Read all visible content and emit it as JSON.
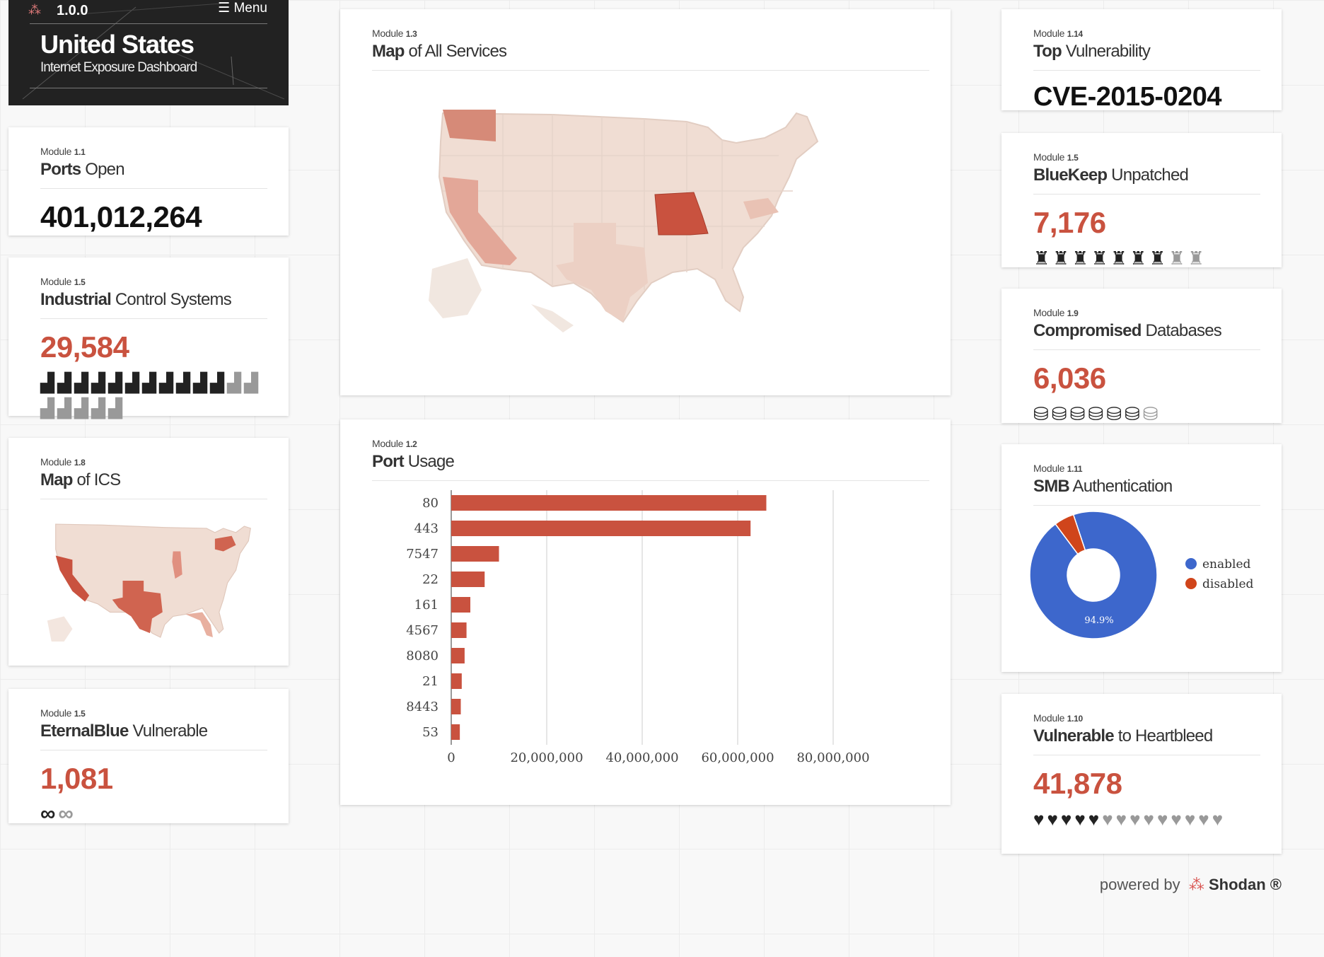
{
  "header": {
    "version": "1.0.0",
    "menu_label": "Menu",
    "country": "United States",
    "subtitle": "Internet Exposure Dashboard"
  },
  "modules": {
    "ports_open": {
      "module_prefix": "Module",
      "module_num": "1.1",
      "title_bold": "Ports",
      "title_rest": "Open",
      "value": "401,012,264"
    },
    "ics": {
      "module_prefix": "Module",
      "module_num": "1.5",
      "title_bold": "Industrial",
      "title_rest": "Control Systems",
      "value": "29,584",
      "icons_filled": 11,
      "icons_total": 18
    },
    "map_ics": {
      "module_prefix": "Module",
      "module_num": "1.8",
      "title_bold": "Map",
      "title_rest": "of ICS"
    },
    "eternalblue": {
      "module_prefix": "Module",
      "module_num": "1.5",
      "title_bold": "EternalBlue",
      "title_rest": "Vulnerable",
      "value": "1,081",
      "icons_filled": 1,
      "icons_total": 2
    },
    "map_all": {
      "module_prefix": "Module",
      "module_num": "1.3",
      "title_bold": "Map",
      "title_rest": "of All Services"
    },
    "port_usage": {
      "module_prefix": "Module",
      "module_num": "1.2",
      "title_bold": "Port",
      "title_rest": "Usage"
    },
    "top_vuln": {
      "module_prefix": "Module",
      "module_num": "1.14",
      "title_bold": "Top",
      "title_rest": "Vulnerability",
      "value": "CVE-2015-0204"
    },
    "bluekeep": {
      "module_prefix": "Module",
      "module_num": "1.5",
      "title_bold": "BlueKeep",
      "title_rest": "Unpatched",
      "value": "7,176",
      "icons_filled": 7,
      "icons_total": 9
    },
    "databases": {
      "module_prefix": "Module",
      "module_num": "1.9",
      "title_bold": "Compromised",
      "title_rest": "Databases",
      "value": "6,036",
      "icons_filled": 6,
      "icons_total": 7
    },
    "smb": {
      "module_prefix": "Module",
      "module_num": "1.11",
      "title_bold": "SMB",
      "title_rest": "Authentication"
    },
    "heartbleed": {
      "module_prefix": "Module",
      "module_num": "1.10",
      "title_bold": "Vulnerable",
      "title_rest": "to Heartbleed",
      "value": "41,878",
      "icons_filled": 5,
      "icons_total": 14
    }
  },
  "chart_data": [
    {
      "type": "bar",
      "orientation": "horizontal",
      "title": "Port Usage",
      "categories": [
        "80",
        "443",
        "7547",
        "22",
        "161",
        "4567",
        "8080",
        "21",
        "8443",
        "53"
      ],
      "values": [
        66000000,
        62700000,
        10000000,
        7000000,
        4000000,
        3200000,
        2800000,
        2200000,
        2000000,
        1800000
      ],
      "xlim": [
        0,
        80000000
      ],
      "xticks": [
        0,
        20000000,
        40000000,
        60000000,
        80000000
      ],
      "xtick_labels": [
        "0",
        "20,000,000",
        "40,000,000",
        "60,000,000",
        "80,000,000"
      ],
      "color": "#c9523f"
    },
    {
      "type": "pie",
      "donut": true,
      "title": "SMB Authentication",
      "labels": [
        "enabled",
        "disabled"
      ],
      "values": [
        94.9,
        5.1
      ],
      "colors": [
        "#3d67cc",
        "#d0451b"
      ],
      "slice_label": "94.9%"
    }
  ],
  "footer": {
    "prefix": "powered by",
    "brand": "Shodan",
    "mark": "®"
  }
}
